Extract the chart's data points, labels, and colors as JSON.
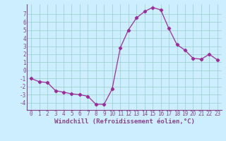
{
  "x": [
    0,
    1,
    2,
    3,
    4,
    5,
    6,
    7,
    8,
    9,
    10,
    11,
    12,
    13,
    14,
    15,
    16,
    17,
    18,
    19,
    20,
    21,
    22,
    23
  ],
  "y": [
    -1,
    -1.4,
    -1.5,
    -2.5,
    -2.7,
    -2.9,
    -3.0,
    -3.2,
    -4.2,
    -4.2,
    -2.3,
    2.8,
    5.0,
    6.5,
    7.3,
    7.8,
    7.5,
    5.2,
    3.2,
    2.5,
    1.5,
    1.4,
    2.0,
    1.3
  ],
  "line_color": "#9b2d9b",
  "marker": "D",
  "marker_size": 2.2,
  "linewidth": 0.9,
  "xlabel": "Windchill (Refroidissement éolien,°C)",
  "bg_color": "#cceeff",
  "grid_color": "#99cccc",
  "xlim": [
    -0.5,
    23.5
  ],
  "ylim": [
    -4.9,
    8.2
  ],
  "yticks": [
    -4,
    -3,
    -2,
    -1,
    0,
    1,
    2,
    3,
    4,
    5,
    6,
    7
  ],
  "xticks": [
    0,
    1,
    2,
    3,
    4,
    5,
    6,
    7,
    8,
    9,
    10,
    11,
    12,
    13,
    14,
    15,
    16,
    17,
    18,
    19,
    20,
    21,
    22,
    23
  ],
  "spine_color": "#884488",
  "tick_color": "#884488",
  "label_color": "#884488",
  "xlabel_fontsize": 6.5,
  "tick_fontsize": 5.5
}
